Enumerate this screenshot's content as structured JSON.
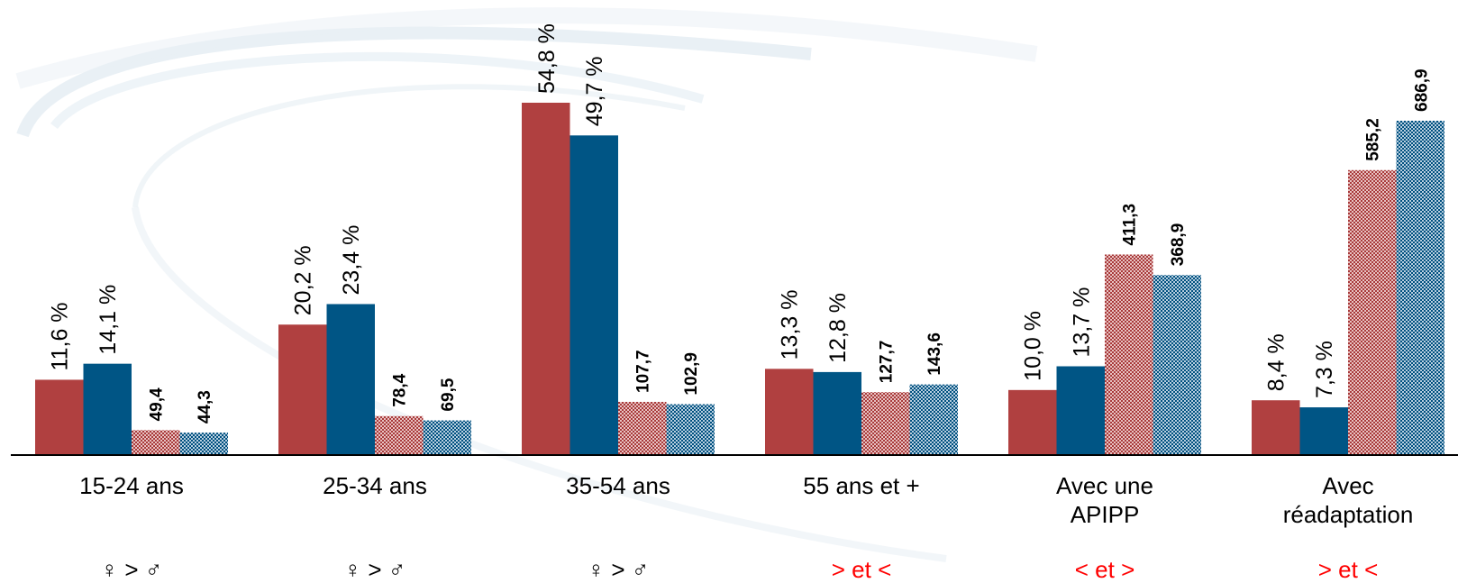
{
  "chart_data": {
    "type": "bar",
    "categories": [
      "15-24 ans",
      "25-34 ans",
      "35-54 ans",
      "55 ans et +",
      "Avec une APIPP",
      "Avec réadaptation"
    ],
    "category_lines": [
      [
        "15-24 ans"
      ],
      [
        "25-34 ans"
      ],
      [
        "35-54 ans"
      ],
      [
        "55 ans et +"
      ],
      [
        "Avec une",
        "APIPP"
      ],
      [
        "Avec",
        "réadaptation"
      ]
    ],
    "series": [
      {
        "values": [
          11.6,
          20.2,
          54.8,
          13.3,
          10.0,
          8.4
        ],
        "labels": [
          "11,6 %",
          "20,2 %",
          "54,8 %",
          "13,3 %",
          "10,0 %",
          "8,4 %"
        ],
        "color": "#b04040",
        "pattern": "solid"
      },
      {
        "values": [
          14.1,
          23.4,
          49.7,
          12.8,
          13.7,
          7.3
        ],
        "labels": [
          "14,1 %",
          "23,4 %",
          "49,7 %",
          "12,8 %",
          "13,7 %",
          "7,3 %"
        ],
        "color": "#005585",
        "pattern": "solid"
      },
      {
        "values": [
          49.4,
          78.4,
          107.7,
          127.7,
          411.3,
          585.2
        ],
        "labels": [
          "49,4",
          "78,4",
          "107,7",
          "127,7",
          "411,3",
          "585,2"
        ],
        "color": "#b04040",
        "pattern": "checkered"
      },
      {
        "values": [
          44.3,
          69.5,
          102.9,
          143.6,
          368.9,
          686.9
        ],
        "labels": [
          "44,3",
          "69,5",
          "102,9",
          "143,6",
          "368,9",
          "686,9"
        ],
        "color": "#005585",
        "pattern": "checkered"
      }
    ],
    "comparisons": [
      {
        "text": "♀ > ♂",
        "color": "#000000"
      },
      {
        "text": "♀ > ♂",
        "color": "#000000"
      },
      {
        "text": "♀ > ♂",
        "color": "#000000"
      },
      {
        "text": "> et <",
        "color": "#ff0000"
      },
      {
        "text": "< et >",
        "color": "#ff0000"
      },
      {
        "text": "> et <",
        "color": "#ff0000"
      }
    ],
    "percent_ylim": [
      0,
      60
    ],
    "count_ylim": [
      0,
      750
    ]
  }
}
